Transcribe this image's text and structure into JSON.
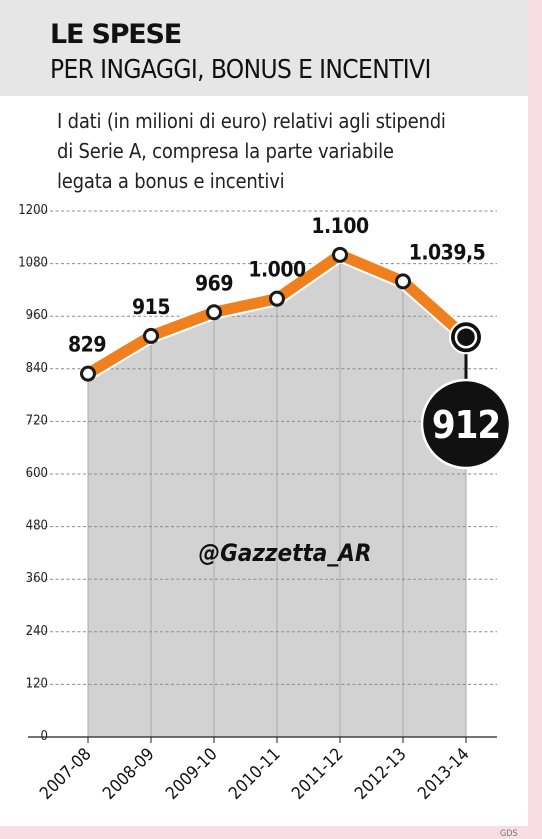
{
  "header": {
    "title": "LE SPESE",
    "subtitle": "PER INGAGGI, BONUS E INCENTIVI"
  },
  "description_lines": [
    "I dati (in milioni di euro) relativi agli stipendi",
    "di Serie A, compresa la parte variabile",
    "legata a bonus e incentivi"
  ],
  "watermark": "@Gazzetta_AR",
  "footer_credit": "GDS",
  "colors": {
    "line": "#f07f1e",
    "area": "#d2d2d2",
    "badge": "#111111",
    "accent_border": "#e5006e"
  },
  "chart_data": {
    "type": "line",
    "x": [
      "2007-08",
      "2008-09",
      "2009-10",
      "2010-11",
      "2011-12",
      "2012-13",
      "2013-14"
    ],
    "values": [
      829,
      915,
      969,
      1000,
      1100,
      1039.5,
      912
    ],
    "labels": [
      "829",
      "915",
      "969",
      "1.000",
      "1.100",
      "1.039,5",
      "912"
    ],
    "yticks": [
      0,
      120,
      240,
      360,
      480,
      600,
      720,
      840,
      960,
      1080,
      1200
    ],
    "ylim": [
      0,
      1200
    ],
    "grid": true,
    "highlight_last": true,
    "title": "",
    "xlabel": "",
    "ylabel": ""
  }
}
